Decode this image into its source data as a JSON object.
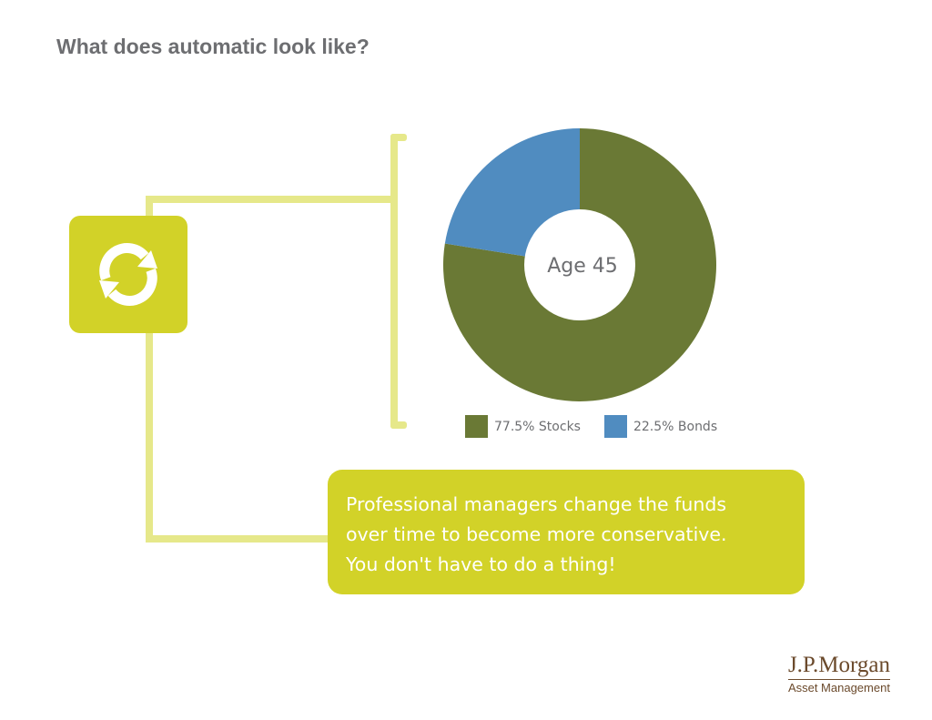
{
  "page": {
    "title": "What does automatic look like?"
  },
  "icon": {
    "name": "refresh-icon",
    "color": "#d2d228"
  },
  "chart_data": {
    "type": "pie",
    "center_label": "Age 45",
    "legend_placement": "bottom",
    "slices": [
      {
        "label": "77.5% Stocks",
        "value": 77.5,
        "color": "#6a7935"
      },
      {
        "label": "22.5% Bonds",
        "value": 22.5,
        "color": "#508cc0"
      }
    ]
  },
  "message": {
    "lines": [
      "Professional managers change the funds",
      "over time to become more conservative.",
      "You don't have to do a thing!"
    ],
    "color": "#d2d228"
  },
  "logo": {
    "name": "J.P.Morgan",
    "subtitle": "Asset Management",
    "color": "#6b4a2c"
  }
}
